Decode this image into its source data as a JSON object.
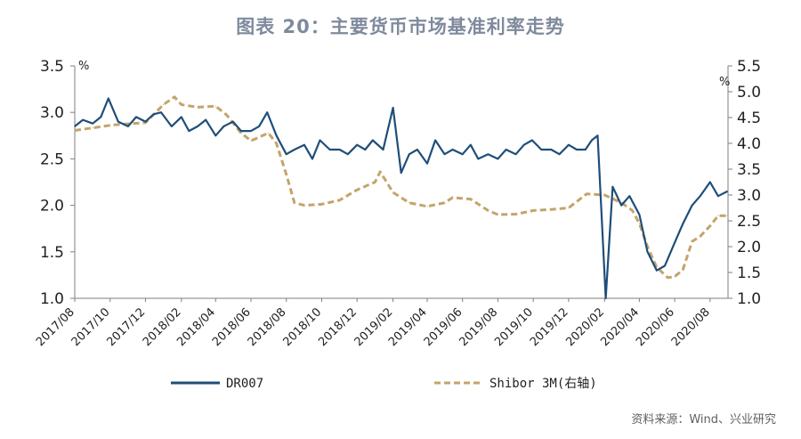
{
  "title": "图表 20：主要货币市场基准利率走势",
  "source": "资料来源：Wind、兴业研究",
  "colors": {
    "dr007": "#1f4e79",
    "shibor": "#c4a46b",
    "axis": "#7f7f7f",
    "title": "#7f8a9c"
  },
  "chart_data": {
    "type": "line",
    "left_axis": {
      "unit": "%",
      "ylim": [
        1.0,
        3.5
      ],
      "ticks": [
        "1.0",
        "1.5",
        "2.0",
        "2.5",
        "3.0",
        "3.5"
      ]
    },
    "right_axis": {
      "unit": "%",
      "ylim": [
        1.0,
        5.5
      ],
      "ticks": [
        "1.0",
        "1.5",
        "2.0",
        "2.5",
        "3.0",
        "3.5",
        "4.0",
        "4.5",
        "5.0",
        "5.5"
      ]
    },
    "x_tick_labels": [
      "2017/08",
      "2017/10",
      "2017/12",
      "2018/02",
      "2018/04",
      "2018/06",
      "2018/08",
      "2018/10",
      "2018/12",
      "2019/02",
      "2019/04",
      "2019/06",
      "2019/08",
      "2019/10",
      "2019/12",
      "2020/02",
      "2020/04",
      "2020/06",
      "2020/08"
    ],
    "legend_position": "bottom",
    "series": [
      {
        "name": "DR007",
        "axis": "left",
        "style": "solid",
        "x": [
          "2017-08-01",
          "2017-08-15",
          "2017-09-01",
          "2017-09-15",
          "2017-09-28",
          "2017-10-15",
          "2017-11-01",
          "2017-11-15",
          "2017-12-01",
          "2017-12-15",
          "2017-12-28",
          "2018-01-15",
          "2018-02-01",
          "2018-02-14",
          "2018-03-01",
          "2018-03-15",
          "2018-04-01",
          "2018-04-15",
          "2018-05-01",
          "2018-05-15",
          "2018-06-01",
          "2018-06-15",
          "2018-06-29",
          "2018-07-15",
          "2018-08-01",
          "2018-08-15",
          "2018-09-01",
          "2018-09-15",
          "2018-09-28",
          "2018-10-15",
          "2018-11-01",
          "2018-11-15",
          "2018-12-01",
          "2018-12-15",
          "2018-12-28",
          "2019-01-15",
          "2019-02-01",
          "2019-02-15",
          "2019-03-01",
          "2019-03-15",
          "2019-04-01",
          "2019-04-15",
          "2019-05-01",
          "2019-05-15",
          "2019-06-01",
          "2019-06-15",
          "2019-06-28",
          "2019-07-15",
          "2019-08-01",
          "2019-08-15",
          "2019-09-01",
          "2019-09-15",
          "2019-09-29",
          "2019-10-15",
          "2019-11-01",
          "2019-11-15",
          "2019-12-01",
          "2019-12-15",
          "2019-12-30",
          "2020-01-10",
          "2020-01-20",
          "2020-02-03",
          "2020-02-15",
          "2020-03-01",
          "2020-03-15",
          "2020-04-01",
          "2020-04-15",
          "2020-05-01",
          "2020-05-15",
          "2020-06-01",
          "2020-06-15",
          "2020-07-01",
          "2020-07-15",
          "2020-08-01",
          "2020-08-15",
          "2020-08-31"
        ],
        "values": [
          2.85,
          2.92,
          2.88,
          2.95,
          3.15,
          2.9,
          2.85,
          2.95,
          2.9,
          2.98,
          3.0,
          2.85,
          2.95,
          2.8,
          2.85,
          2.92,
          2.75,
          2.85,
          2.9,
          2.8,
          2.8,
          2.85,
          3.0,
          2.75,
          2.55,
          2.6,
          2.65,
          2.5,
          2.7,
          2.6,
          2.6,
          2.55,
          2.65,
          2.6,
          2.7,
          2.6,
          3.05,
          2.35,
          2.55,
          2.6,
          2.45,
          2.7,
          2.55,
          2.6,
          2.55,
          2.65,
          2.5,
          2.55,
          2.5,
          2.6,
          2.55,
          2.65,
          2.7,
          2.6,
          2.6,
          2.55,
          2.65,
          2.6,
          2.6,
          2.7,
          2.75,
          1.0,
          2.2,
          2.0,
          2.1,
          1.9,
          1.5,
          1.3,
          1.35,
          1.6,
          1.8,
          2.0,
          2.1,
          2.25,
          2.1,
          2.15
        ]
      },
      {
        "name": "Shibor 3M(右轴)",
        "axis": "right",
        "style": "dashed",
        "x": [
          "2017-08-01",
          "2017-09-01",
          "2017-10-01",
          "2017-11-01",
          "2017-12-01",
          "2018-01-01",
          "2018-01-20",
          "2018-02-01",
          "2018-03-01",
          "2018-04-01",
          "2018-04-20",
          "2018-05-15",
          "2018-06-01",
          "2018-07-01",
          "2018-07-15",
          "2018-08-01",
          "2018-08-15",
          "2018-09-01",
          "2018-10-01",
          "2018-11-01",
          "2018-12-01",
          "2019-01-01",
          "2019-01-10",
          "2019-02-01",
          "2019-03-01",
          "2019-04-01",
          "2019-05-01",
          "2019-05-15",
          "2019-06-15",
          "2019-07-15",
          "2019-08-01",
          "2019-09-01",
          "2019-10-01",
          "2019-11-01",
          "2019-12-01",
          "2020-01-01",
          "2020-02-01",
          "2020-03-01",
          "2020-03-20",
          "2020-04-01",
          "2020-04-15",
          "2020-05-01",
          "2020-05-20",
          "2020-06-01",
          "2020-06-15",
          "2020-07-01",
          "2020-07-15",
          "2020-08-01",
          "2020-08-15",
          "2020-08-31"
        ],
        "values": [
          4.25,
          4.3,
          4.35,
          4.38,
          4.4,
          4.75,
          4.9,
          4.75,
          4.7,
          4.72,
          4.55,
          4.2,
          4.05,
          4.2,
          4.0,
          3.4,
          2.85,
          2.8,
          2.82,
          2.9,
          3.1,
          3.25,
          3.45,
          3.05,
          2.85,
          2.78,
          2.85,
          2.95,
          2.92,
          2.7,
          2.62,
          2.63,
          2.7,
          2.72,
          2.75,
          3.02,
          3.0,
          2.85,
          2.7,
          2.45,
          2.0,
          1.6,
          1.4,
          1.42,
          1.55,
          2.1,
          2.2,
          2.4,
          2.6,
          2.6
        ]
      }
    ]
  }
}
